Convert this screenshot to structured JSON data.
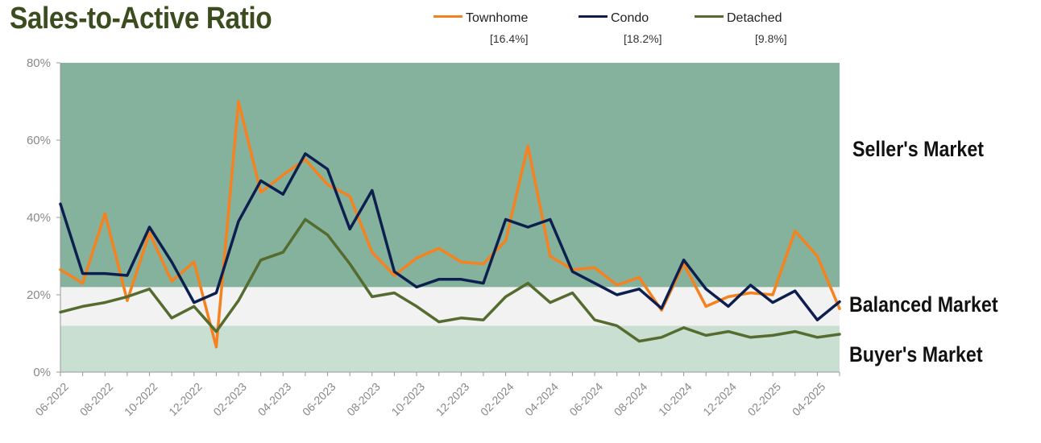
{
  "title": "Sales-to-Active Ratio",
  "legend": [
    {
      "name": "Townhome",
      "latest": "[16.4%]",
      "color": "#f5821f"
    },
    {
      "name": "Condo",
      "latest": "[18.2%]",
      "color": "#0d1f4f"
    },
    {
      "name": "Detached",
      "latest": "[9.8%]",
      "color": "#556b2f"
    }
  ],
  "zones": {
    "seller_label": "Seller's Market",
    "balanced_label": "Balanced Market",
    "buyer_label": "Buyer's Market",
    "seller_color": "#85b29c",
    "balanced_color": "#f2f2f2",
    "buyer_color": "#c8dfd2"
  },
  "chart_data": {
    "type": "line",
    "title": "Sales-to-Active Ratio",
    "ylim": [
      0,
      80
    ],
    "yticks": [
      "0%",
      "20%",
      "40%",
      "60%",
      "80%"
    ],
    "zones": [
      {
        "name": "Buyer's Market",
        "from": 0,
        "to": 12
      },
      {
        "name": "Balanced Market",
        "from": 12,
        "to": 22
      },
      {
        "name": "Seller's Market",
        "from": 22,
        "to": 80
      }
    ],
    "x": [
      "06-2022",
      "07-2022",
      "08-2022",
      "09-2022",
      "10-2022",
      "11-2022",
      "12-2022",
      "01-2023",
      "02-2023",
      "03-2023",
      "04-2023",
      "05-2023",
      "06-2023",
      "07-2023",
      "08-2023",
      "09-2023",
      "10-2023",
      "11-2023",
      "12-2023",
      "01-2024",
      "02-2024",
      "03-2024",
      "04-2024",
      "05-2024",
      "06-2024",
      "07-2024",
      "08-2024",
      "09-2024",
      "10-2024",
      "11-2024",
      "12-2024",
      "01-2025",
      "02-2025",
      "03-2025",
      "04-2025",
      "05-2025"
    ],
    "xtick_labels": [
      "06-2022",
      "08-2022",
      "10-2022",
      "12-2022",
      "02-2023",
      "04-2023",
      "06-2023",
      "08-2023",
      "10-2023",
      "12-2023",
      "02-2024",
      "04-2024",
      "06-2024",
      "08-2024",
      "10-2024",
      "12-2024",
      "02-2025",
      "04-2025"
    ],
    "series": [
      {
        "name": "Townhome",
        "color": "#f5821f",
        "values": [
          26.5,
          23,
          41,
          18.5,
          36,
          23.5,
          28.5,
          6.5,
          70,
          46.5,
          51,
          55,
          48.5,
          45.5,
          31,
          25,
          29.5,
          32,
          28.5,
          28,
          34,
          58.5,
          30,
          26.5,
          27,
          22.5,
          24.5,
          16,
          28,
          17,
          19.5,
          20.5,
          20,
          36.5,
          30,
          16.4
        ]
      },
      {
        "name": "Condo",
        "color": "#0d1f4f",
        "values": [
          43.5,
          25.5,
          25.5,
          25,
          37.5,
          28.5,
          18,
          20.5,
          39,
          49.5,
          46,
          56.5,
          52.5,
          37,
          47,
          26,
          22,
          24,
          24,
          23,
          39.5,
          37.5,
          39.5,
          26,
          23,
          20,
          21.5,
          16.5,
          29,
          21.5,
          17,
          22.5,
          18,
          21,
          13.5,
          18.2
        ]
      },
      {
        "name": "Detached",
        "color": "#556b2f",
        "values": [
          15.5,
          17,
          18,
          19.5,
          21.5,
          14,
          17,
          10.5,
          18.5,
          29,
          31,
          39.5,
          35.5,
          28,
          19.5,
          20.5,
          17,
          13,
          14,
          13.5,
          19.5,
          23,
          18,
          20.5,
          13.5,
          12,
          8,
          9,
          11.5,
          9.5,
          10.5,
          9,
          9.5,
          10.5,
          9,
          9.8
        ]
      }
    ]
  }
}
